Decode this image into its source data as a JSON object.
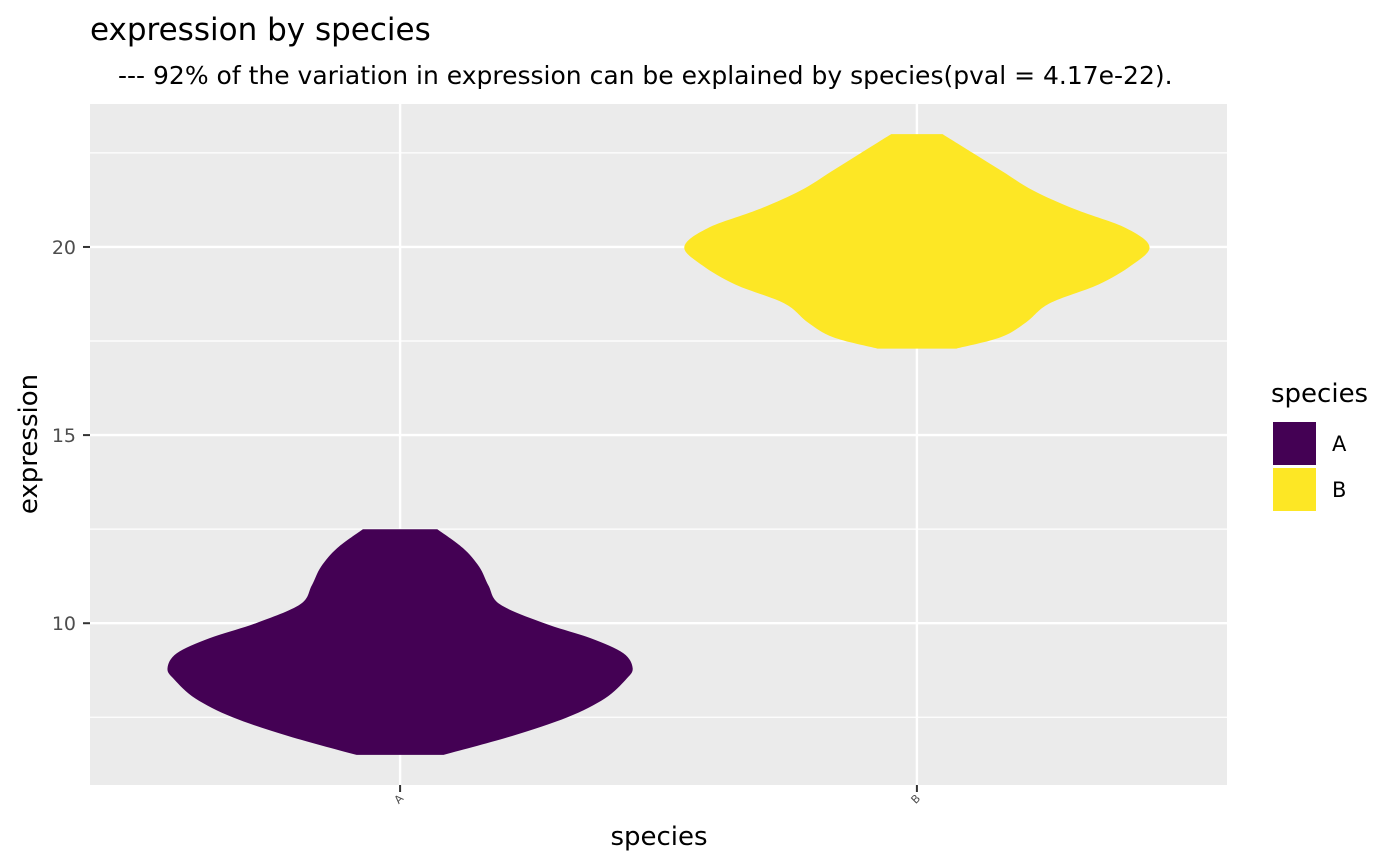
{
  "chart_data": {
    "type": "violin",
    "title": "expression by species",
    "subtitle": "---  92% of the variation in expression can be explained by species(pval = 4.17e-22).",
    "xlabel": "species",
    "ylabel": "expression",
    "ylim": [
      5.7,
      23.8
    ],
    "yticks": [
      10,
      15,
      20
    ],
    "categories": [
      "A",
      "B"
    ],
    "grid": true,
    "legend": {
      "title": "species",
      "placement": "right",
      "entries": [
        {
          "label": "A",
          "color": "#440154"
        },
        {
          "label": "B",
          "color": "#FDE725"
        }
      ]
    },
    "series": [
      {
        "category": "A",
        "color": "#440154",
        "min": 6.5,
        "max": 12.5,
        "density_profile": [
          {
            "y": 6.5,
            "w": 0.187
          },
          {
            "y": 7.0,
            "w": 0.48
          },
          {
            "y": 7.5,
            "w": 0.72
          },
          {
            "y": 8.0,
            "w": 0.88
          },
          {
            "y": 8.5,
            "w": 0.97
          },
          {
            "y": 8.8,
            "w": 1.0
          },
          {
            "y": 9.2,
            "w": 0.96
          },
          {
            "y": 9.6,
            "w": 0.82
          },
          {
            "y": 10.0,
            "w": 0.62
          },
          {
            "y": 10.5,
            "w": 0.43
          },
          {
            "y": 11.0,
            "w": 0.38
          },
          {
            "y": 11.5,
            "w": 0.34
          },
          {
            "y": 12.0,
            "w": 0.27
          },
          {
            "y": 12.5,
            "w": 0.16
          }
        ]
      },
      {
        "category": "B",
        "color": "#FDE725",
        "min": 17.3,
        "max": 23.0,
        "density_profile": [
          {
            "y": 17.3,
            "w": 0.17
          },
          {
            "y": 17.6,
            "w": 0.36
          },
          {
            "y": 18.0,
            "w": 0.47
          },
          {
            "y": 18.5,
            "w": 0.57
          },
          {
            "y": 19.0,
            "w": 0.78
          },
          {
            "y": 19.5,
            "w": 0.92
          },
          {
            "y": 20.0,
            "w": 1.0
          },
          {
            "y": 20.5,
            "w": 0.9
          },
          {
            "y": 21.0,
            "w": 0.68
          },
          {
            "y": 21.5,
            "w": 0.5
          },
          {
            "y": 22.0,
            "w": 0.37
          },
          {
            "y": 22.5,
            "w": 0.24
          },
          {
            "y": 23.0,
            "w": 0.11
          }
        ]
      }
    ]
  }
}
